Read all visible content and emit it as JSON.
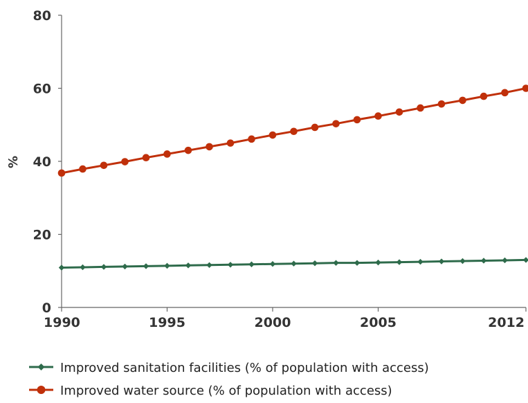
{
  "chart_data": {
    "type": "line",
    "x": [
      1990,
      1991,
      1992,
      1993,
      1994,
      1995,
      1996,
      1997,
      1998,
      1999,
      2000,
      2001,
      2002,
      2003,
      2004,
      2005,
      2006,
      2007,
      2008,
      2009,
      2010,
      2011,
      2012
    ],
    "series": [
      {
        "name": "Improved sanitation facilities (% of population with access)",
        "color": "#2e6b4b",
        "marker": "diamond",
        "values": [
          10.9,
          11.0,
          11.1,
          11.2,
          11.3,
          11.4,
          11.5,
          11.6,
          11.7,
          11.8,
          11.9,
          12.0,
          12.1,
          12.2,
          12.2,
          12.3,
          12.4,
          12.5,
          12.6,
          12.7,
          12.8,
          12.9,
          13.0
        ]
      },
      {
        "name": "Improved water source (% of population with access)",
        "color": "#c0300a",
        "marker": "circle",
        "values": [
          36.8,
          37.9,
          38.9,
          39.9,
          41.0,
          42.0,
          43.0,
          44.0,
          45.0,
          46.1,
          47.2,
          48.2,
          49.3,
          50.3,
          51.4,
          52.4,
          53.5,
          54.6,
          55.7,
          56.7,
          57.8,
          58.8,
          60.0
        ]
      }
    ],
    "ylabel": "%",
    "ylim": [
      0,
      80
    ],
    "yticks": [
      {
        "value": 0,
        "label": "0"
      },
      {
        "value": 20,
        "label": "20"
      },
      {
        "value": 40,
        "label": "40"
      },
      {
        "value": 60,
        "label": "60"
      },
      {
        "value": 80,
        "label": "80"
      }
    ],
    "xticks": [
      {
        "value": 1990,
        "label": "1990"
      },
      {
        "value": 1995,
        "label": "1995"
      },
      {
        "value": 2000,
        "label": "2000"
      },
      {
        "value": 2005,
        "label": "2005"
      },
      {
        "value": 2012,
        "label": "2012"
      }
    ],
    "grid": false,
    "legend_position": "bottom"
  }
}
